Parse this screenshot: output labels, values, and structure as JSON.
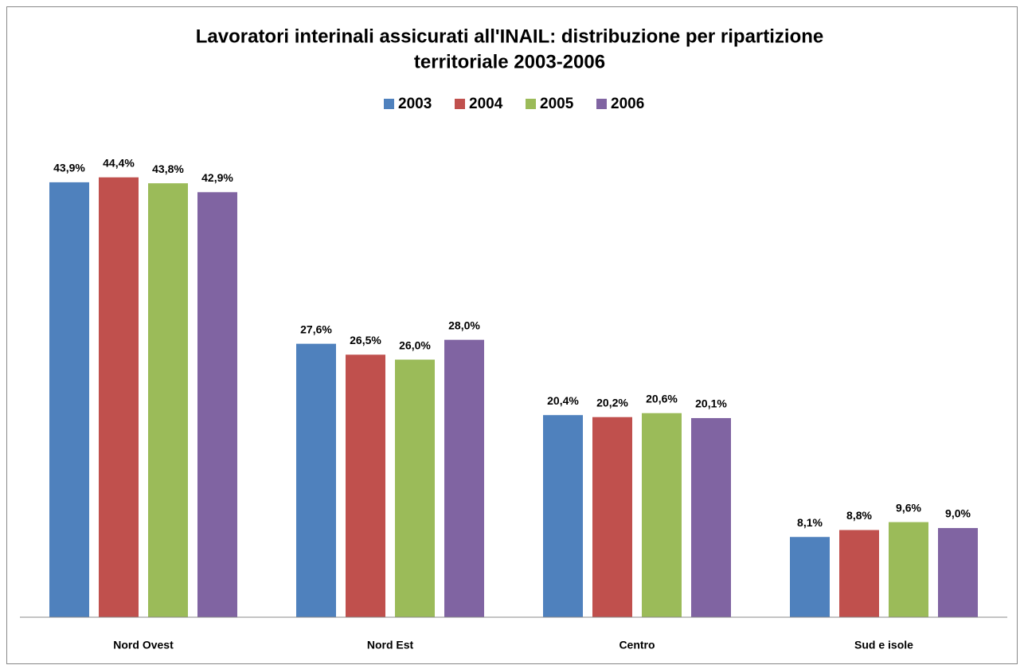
{
  "chart_data": {
    "type": "bar",
    "title": [
      "Lavoratori interinali assicurati all'INAIL: distribuzione per ripartizione",
      "territoriale 2003-2006"
    ],
    "categories": [
      "Nord Ovest",
      "Nord Est",
      "Centro",
      "Sud e isole"
    ],
    "series": [
      {
        "name": "2003",
        "color": "#4f81bd",
        "values": [
          43.9,
          27.6,
          20.4,
          8.1
        ],
        "value_labels": [
          "43,9%",
          "27,6%",
          "20,4%",
          "8,1%"
        ]
      },
      {
        "name": "2004",
        "color": "#c0504d",
        "values": [
          44.4,
          26.5,
          20.2,
          8.8
        ],
        "value_labels": [
          "44,4%",
          "26,5%",
          "20,2%",
          "8,8%"
        ]
      },
      {
        "name": "2005",
        "color": "#9bbb59",
        "values": [
          43.8,
          26.0,
          20.6,
          9.6
        ],
        "value_labels": [
          "43,8%",
          "26,0%",
          "20,6%",
          "9,6%"
        ]
      },
      {
        "name": "2006",
        "color": "#8064a2",
        "values": [
          42.9,
          28.0,
          20.1,
          9.0
        ],
        "value_labels": [
          "42,9%",
          "28,0%",
          "20,1%",
          "9,0%"
        ]
      }
    ],
    "ylim": [
      0,
      50
    ],
    "legend": "top"
  }
}
